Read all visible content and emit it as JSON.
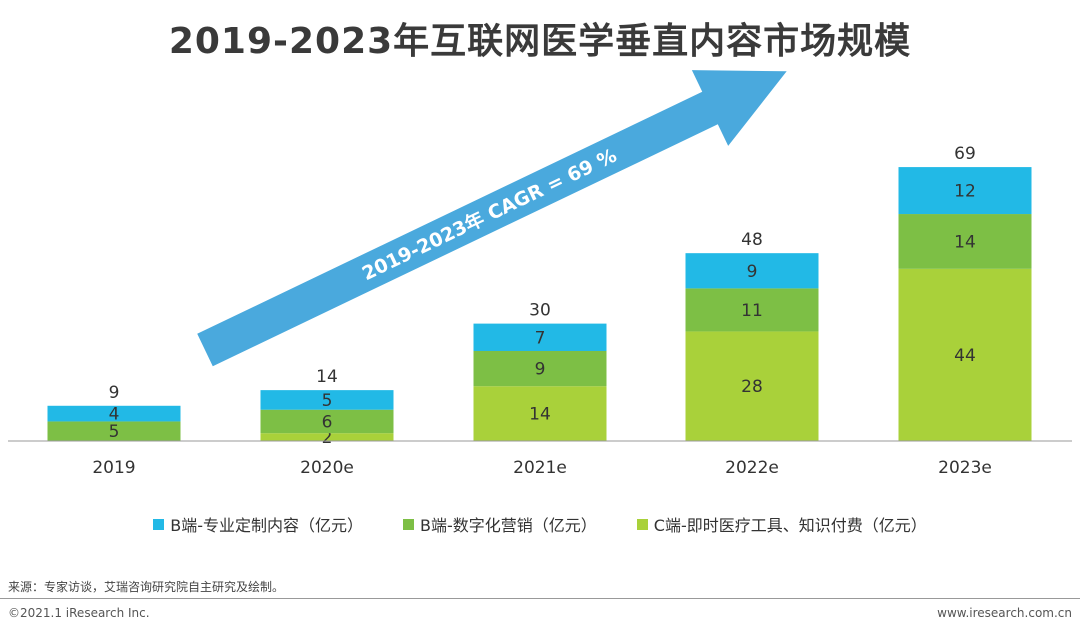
{
  "chart_data": {
    "type": "bar",
    "stacked": true,
    "title": "2019-2023年互联网医学垂直内容市场规模",
    "categories": [
      "2019",
      "2020e",
      "2021e",
      "2022e",
      "2023e"
    ],
    "series": [
      {
        "name": "C端-即时医疗工具、知识付费（亿元）",
        "color": "#a9d13a",
        "values": [
          0,
          2,
          14,
          28,
          44
        ]
      },
      {
        "name": "B端-数字化营销（亿元）",
        "color": "#7dbf45",
        "values": [
          5,
          6,
          9,
          11,
          14
        ]
      },
      {
        "name": "B端-专业定制内容（亿元）",
        "color": "#22b9e6",
        "values": [
          4,
          5,
          7,
          9,
          12
        ]
      }
    ],
    "totals": [
      9,
      14,
      30,
      48,
      69
    ],
    "segment_labels": [
      [
        "",
        "5",
        "4"
      ],
      [
        "2",
        "6",
        "5"
      ],
      [
        "14",
        "9",
        "7"
      ],
      [
        "28",
        "11",
        "9"
      ],
      [
        "44",
        "14",
        "12"
      ]
    ],
    "legend_order": [
      2,
      1,
      0
    ],
    "annotation": "2019-2023年 CAGR = 69 %",
    "ylim": [
      0,
      75
    ],
    "xlabel": "",
    "ylabel": ""
  },
  "legend": {
    "items": [
      {
        "label": "B端-专业定制内容（亿元）",
        "color": "#22b9e6"
      },
      {
        "label": "B端-数字化营销（亿元）",
        "color": "#7dbf45"
      },
      {
        "label": "C端-即时医疗工具、知识付费（亿元）",
        "color": "#a9d13a"
      }
    ]
  },
  "footer": {
    "source": "来源：专家访谈，艾瑞咨询研究院自主研究及绘制。",
    "copyright": "©2021.1 iResearch Inc.",
    "website": "www.iresearch.com.cn"
  },
  "colors": {
    "arrow": "#4aa9dd",
    "axis": "#999999"
  }
}
